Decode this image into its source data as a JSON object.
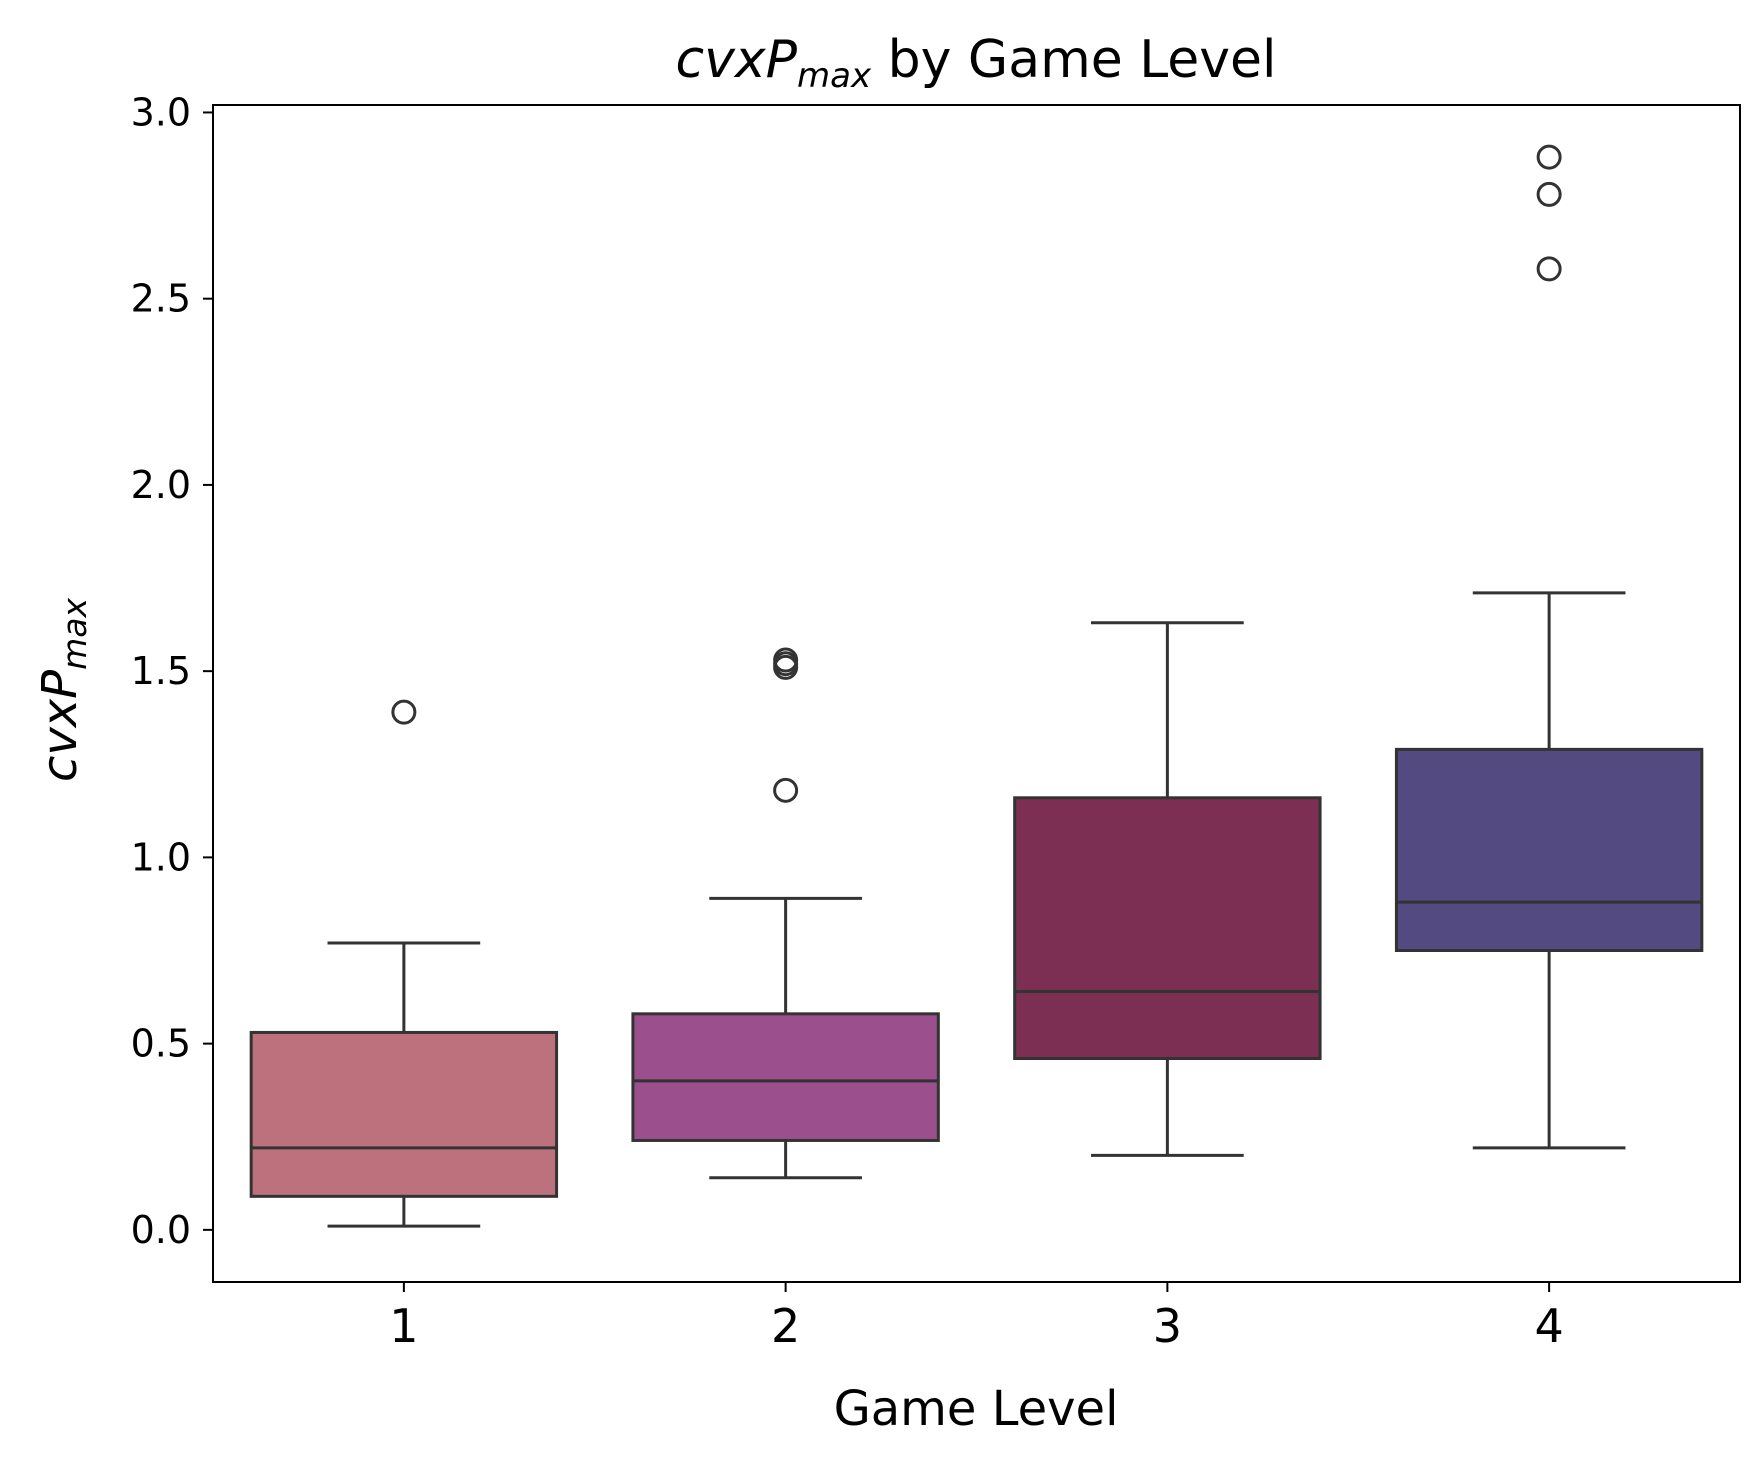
{
  "chart_data": {
    "type": "box",
    "title": {
      "italic_main": "cvxP",
      "italic_sub": "max",
      "rest": " by Game Level"
    },
    "xlabel": "Game Level",
    "ylabel": {
      "italic_main": "cvxP",
      "italic_sub": "max"
    },
    "categories": [
      "1",
      "2",
      "3",
      "4"
    ],
    "ylim": [
      -0.14,
      3.02
    ],
    "yticks": [
      0.0,
      0.5,
      1.0,
      1.5,
      2.0,
      2.5,
      3.0
    ],
    "ytick_labels": [
      "0.0",
      "0.5",
      "1.0",
      "1.5",
      "2.0",
      "2.5",
      "3.0"
    ],
    "grid": false,
    "boxes": [
      {
        "category": "1",
        "color": "#bd717d",
        "whisker_low": 0.01,
        "q1": 0.09,
        "median": 0.22,
        "q3": 0.53,
        "whisker_high": 0.77,
        "outliers": [
          1.39
        ]
      },
      {
        "category": "2",
        "color": "#9b4f8d",
        "whisker_low": 0.14,
        "q1": 0.24,
        "median": 0.4,
        "q3": 0.58,
        "whisker_high": 0.89,
        "outliers": [
          1.18,
          1.51,
          1.52,
          1.53
        ]
      },
      {
        "category": "3",
        "color": "#7c2f52",
        "whisker_low": 0.2,
        "q1": 0.46,
        "median": 0.64,
        "q3": 1.16,
        "whisker_high": 1.63,
        "outliers": []
      },
      {
        "category": "4",
        "color": "#524a80",
        "whisker_low": 0.22,
        "q1": 0.75,
        "median": 0.88,
        "q3": 1.29,
        "whisker_high": 1.71,
        "outliers": [
          2.58,
          2.78,
          2.88
        ]
      }
    ]
  }
}
